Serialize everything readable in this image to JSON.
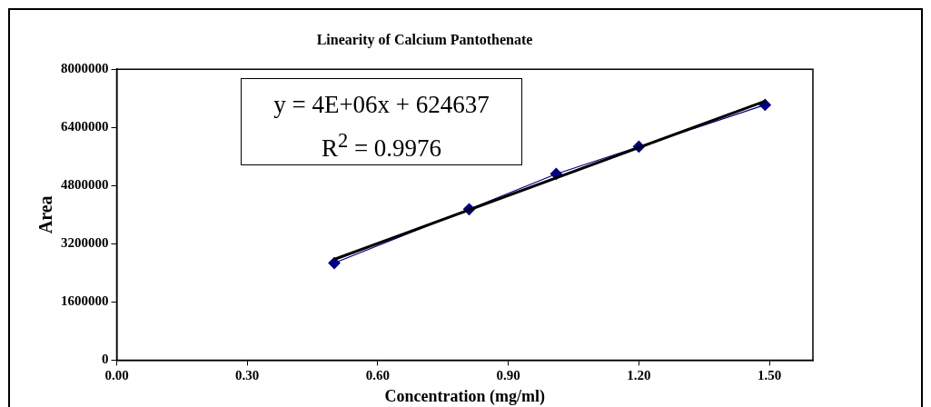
{
  "chart_data": {
    "type": "scatter",
    "title": "Linearity of Calcium Pantothenate",
    "xlabel": "Concentration (mg/ml)",
    "ylabel": "Area",
    "x": [
      0.5,
      0.81,
      1.01,
      1.2,
      1.49
    ],
    "series": [
      {
        "type": "line",
        "color": "#000080",
        "values": [
          2670000,
          4150000,
          5120000,
          5870000,
          7020000
        ],
        "marker": "diamond"
      },
      {
        "type": "line",
        "color": "#000000",
        "x": [
          0.5,
          1.49
        ],
        "values": [
          2770000,
          7120000
        ],
        "marker": "none"
      }
    ],
    "xlim": [
      0,
      1.6
    ],
    "xticks": [
      {
        "value": 0,
        "label": "0.00"
      },
      {
        "value": 0.3,
        "label": "0.30"
      },
      {
        "value": 0.6,
        "label": "0.60"
      },
      {
        "value": 0.9,
        "label": "0.90"
      },
      {
        "value": 1.2,
        "label": "1.20"
      },
      {
        "value": 1.5,
        "label": "1.50"
      }
    ],
    "ylim": [
      0,
      8000000
    ],
    "yticks": [
      0,
      1600000,
      3200000,
      4800000,
      6400000,
      8000000
    ],
    "grid": false,
    "legend": false,
    "annotations": [
      "y = 4E+06x + 624637",
      "R$^{2}$ = 0.9976"
    ]
  }
}
